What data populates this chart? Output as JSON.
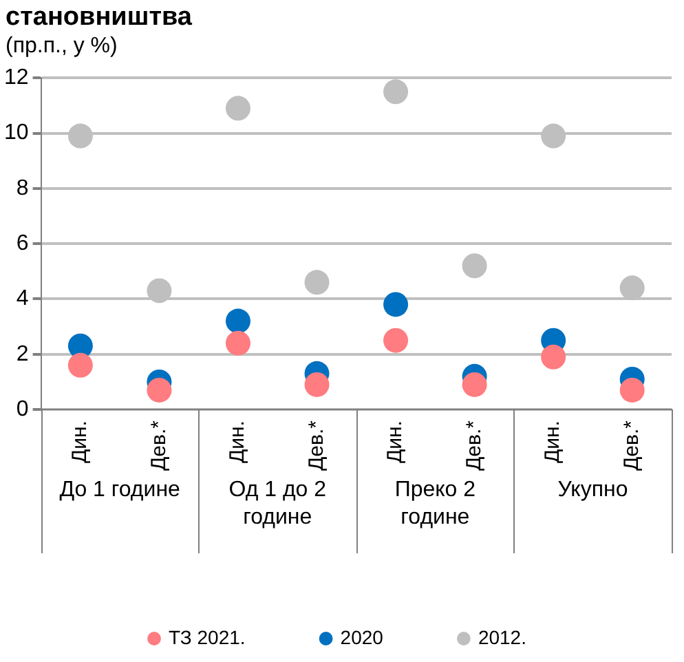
{
  "chart_data": {
    "type": "scatter",
    "title": "становништва",
    "subtitle": "(пр.п., у %)",
    "categories": [
      "Дин.",
      "Дев.*",
      "Дин.",
      "Дев.*",
      "Дин.",
      "Дев.*",
      "Дин.",
      "Дев.*"
    ],
    "annotations": [
      "До 1 године",
      "Од 1 до 2 године",
      "Преко 2 године",
      "Укупно"
    ],
    "series": [
      {
        "name": "2012.",
        "color": "#bfbfbf",
        "values": [
          9.9,
          4.3,
          10.9,
          4.6,
          11.5,
          5.2,
          9.9,
          4.4
        ]
      },
      {
        "name": "2020",
        "color": "#0070c0",
        "values": [
          2.3,
          1.0,
          3.2,
          1.3,
          3.8,
          1.2,
          2.5,
          1.1
        ]
      },
      {
        "name": "ТЗ 2021.",
        "color": "#ff7c80",
        "values": [
          1.6,
          0.7,
          2.4,
          0.9,
          2.5,
          0.9,
          1.9,
          0.7
        ]
      }
    ],
    "ylim": [
      0,
      12
    ],
    "yticks": [
      0,
      2,
      4,
      6,
      8,
      10,
      12
    ],
    "grid": "y",
    "legend": "bottom",
    "marker": "circle"
  }
}
